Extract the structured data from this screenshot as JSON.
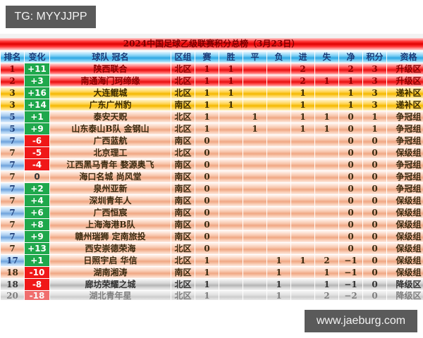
{
  "watermarks": {
    "top_left": "TG: MYYJJPP",
    "bottom_right": "www.jaeburg.com"
  },
  "board": {
    "title": "2024中国足球乙级联赛积分总榜（3月23日）",
    "columns": [
      "排名",
      "变化",
      "球队 冠名",
      "区组",
      "赛",
      "胜",
      "平",
      "负",
      "进",
      "失",
      "净",
      "积分",
      "资格"
    ],
    "colors": {
      "promotion": "#e81010",
      "playoff": "#f4b800",
      "group": "#f0a884",
      "relegation": "#b6b6b6",
      "header": "#2fa8e4",
      "change_up": "#1fa84c",
      "change_down": "#f01818"
    },
    "rows": [
      {
        "rank": "1",
        "change": "+11",
        "team": "陕西联合",
        "zone": "北区",
        "p": "1",
        "w": "1",
        "d": "",
        "l": "",
        "gf": "2",
        "ga": "",
        "gd": "2",
        "pts": "3",
        "status": "升级区"
      },
      {
        "rank": "2",
        "change": "+3",
        "team": "南通海门珂缔缘",
        "zone": "北区",
        "p": "1",
        "w": "1",
        "d": "",
        "l": "",
        "gf": "2",
        "ga": "1",
        "gd": "1",
        "pts": "3",
        "status": "升级区"
      },
      {
        "rank": "3",
        "change": "+16",
        "team": "大连鲲城",
        "zone": "北区",
        "p": "1",
        "w": "1",
        "d": "",
        "l": "",
        "gf": "1",
        "ga": "",
        "gd": "1",
        "pts": "3",
        "status": "递补区"
      },
      {
        "rank": "3",
        "change": "+14",
        "team": "广东广州豹",
        "zone": "南区",
        "p": "1",
        "w": "1",
        "d": "",
        "l": "",
        "gf": "1",
        "ga": "",
        "gd": "1",
        "pts": "3",
        "status": "递补区"
      },
      {
        "rank": "5",
        "change": "+1",
        "team": "泰安天贶",
        "zone": "北区",
        "p": "1",
        "w": "",
        "d": "1",
        "l": "",
        "gf": "1",
        "ga": "1",
        "gd": "0",
        "pts": "1",
        "status": "争冠组"
      },
      {
        "rank": "5",
        "change": "+9",
        "team": "山东泰山B队 金钢山",
        "zone": "北区",
        "p": "1",
        "w": "",
        "d": "1",
        "l": "",
        "gf": "1",
        "ga": "1",
        "gd": "0",
        "pts": "1",
        "status": "争冠组"
      },
      {
        "rank": "7",
        "change": "-6",
        "team": "广西蓝航",
        "zone": "南区",
        "p": "0",
        "w": "",
        "d": "",
        "l": "",
        "gf": "",
        "ga": "",
        "gd": "0",
        "pts": "0",
        "status": "争冠组"
      },
      {
        "rank": "7",
        "change": "-5",
        "team": "北京理工",
        "zone": "北区",
        "p": "0",
        "w": "",
        "d": "",
        "l": "",
        "gf": "",
        "ga": "",
        "gd": "0",
        "pts": "0",
        "status": "保级组"
      },
      {
        "rank": "7",
        "change": "-4",
        "team": "江西黑马青年 婺源奥飞",
        "zone": "南区",
        "p": "0",
        "w": "",
        "d": "",
        "l": "",
        "gf": "",
        "ga": "",
        "gd": "0",
        "pts": "0",
        "status": "争冠组"
      },
      {
        "rank": "7",
        "change": "0",
        "team": "海口名城 尚风堂",
        "zone": "南区",
        "p": "0",
        "w": "",
        "d": "",
        "l": "",
        "gf": "",
        "ga": "",
        "gd": "0",
        "pts": "0",
        "status": "争冠组"
      },
      {
        "rank": "7",
        "change": "+2",
        "team": "泉州亚新",
        "zone": "南区",
        "p": "0",
        "w": "",
        "d": "",
        "l": "",
        "gf": "",
        "ga": "",
        "gd": "0",
        "pts": "0",
        "status": "争冠组"
      },
      {
        "rank": "7",
        "change": "+4",
        "team": "深圳青年人",
        "zone": "南区",
        "p": "0",
        "w": "",
        "d": "",
        "l": "",
        "gf": "",
        "ga": "",
        "gd": "0",
        "pts": "0",
        "status": "保级组"
      },
      {
        "rank": "7",
        "change": "+6",
        "team": "广西恒宸",
        "zone": "南区",
        "p": "0",
        "w": "",
        "d": "",
        "l": "",
        "gf": "",
        "ga": "",
        "gd": "0",
        "pts": "0",
        "status": "保级组"
      },
      {
        "rank": "7",
        "change": "+8",
        "team": "上海海港B队",
        "zone": "南区",
        "p": "0",
        "w": "",
        "d": "",
        "l": "",
        "gf": "",
        "ga": "",
        "gd": "0",
        "pts": "0",
        "status": "保级组"
      },
      {
        "rank": "7",
        "change": "+9",
        "team": "赣州瑞狮 定南旅投",
        "zone": "南区",
        "p": "0",
        "w": "",
        "d": "",
        "l": "",
        "gf": "",
        "ga": "",
        "gd": "0",
        "pts": "0",
        "status": "保级组"
      },
      {
        "rank": "7",
        "change": "+13",
        "team": "西安崇德荣海",
        "zone": "北区",
        "p": "0",
        "w": "",
        "d": "",
        "l": "",
        "gf": "",
        "ga": "",
        "gd": "0",
        "pts": "0",
        "status": "保级组"
      },
      {
        "rank": "17",
        "change": "+1",
        "team": "日照宇启 华信",
        "zone": "北区",
        "p": "1",
        "w": "",
        "d": "",
        "l": "1",
        "gf": "1",
        "ga": "2",
        "gd": "−1",
        "pts": "0",
        "status": "保级组"
      },
      {
        "rank": "18",
        "change": "-10",
        "team": "湖南湘涛",
        "zone": "南区",
        "p": "1",
        "w": "",
        "d": "",
        "l": "1",
        "gf": "",
        "ga": "1",
        "gd": "−1",
        "pts": "0",
        "status": "保级组"
      },
      {
        "rank": "18",
        "change": "-8",
        "team": "廊坊荣耀之城",
        "zone": "北区",
        "p": "1",
        "w": "",
        "d": "",
        "l": "1",
        "gf": "",
        "ga": "1",
        "gd": "−1",
        "pts": "0",
        "status": "降级区"
      },
      {
        "rank": "20",
        "change": "-18",
        "team": "湖北青年星",
        "zone": "北区",
        "p": "1",
        "w": "",
        "d": "",
        "l": "1",
        "gf": "",
        "ga": "2",
        "gd": "−2",
        "pts": "0",
        "status": "降级区"
      }
    ]
  }
}
